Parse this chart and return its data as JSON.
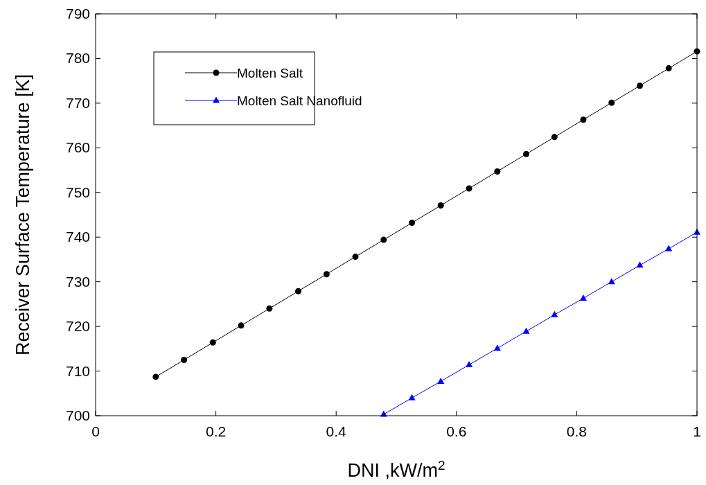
{
  "chart_data": {
    "type": "line",
    "xlabel": "DNI ,kW/m$^{2}$",
    "ylabel": "Receiver Surface Temperature [K]",
    "xlim": [
      0,
      1
    ],
    "xticks": [
      0,
      0.2,
      0.4,
      0.6,
      0.8,
      1
    ],
    "ylim": [
      700,
      790
    ],
    "yticks": [
      700,
      710,
      720,
      730,
      740,
      750,
      760,
      770,
      780,
      790
    ],
    "legend": "top left",
    "line_style": "solid",
    "series": [
      {
        "name": "Molten Salt",
        "color": "#000000",
        "marker": "circle",
        "x": [
          0.1,
          0.147,
          0.195,
          0.242,
          0.289,
          0.337,
          0.384,
          0.432,
          0.479,
          0.526,
          0.574,
          0.621,
          0.668,
          0.716,
          0.763,
          0.811,
          0.858,
          0.905,
          0.953,
          1
        ],
        "values": [
          708.7,
          712.5,
          716.4,
          720.2,
          724.0,
          727.9,
          731.7,
          735.6,
          739.4,
          743.2,
          747.1,
          750.9,
          754.7,
          758.6,
          762.4,
          766.3,
          770.1,
          773.9,
          777.8,
          781.6
        ]
      },
      {
        "name": "Molten Salt Nanofluid",
        "color": "#0000ff",
        "marker": "triangle",
        "x": [
          0.479,
          0.526,
          0.574,
          0.621,
          0.668,
          0.716,
          0.763,
          0.811,
          0.858,
          0.905,
          0.953,
          1
        ],
        "values": [
          700.3,
          704.0,
          707.7,
          711.4,
          715.1,
          718.9,
          722.6,
          726.3,
          730.0,
          733.7,
          737.4,
          741.1
        ]
      }
    ]
  }
}
